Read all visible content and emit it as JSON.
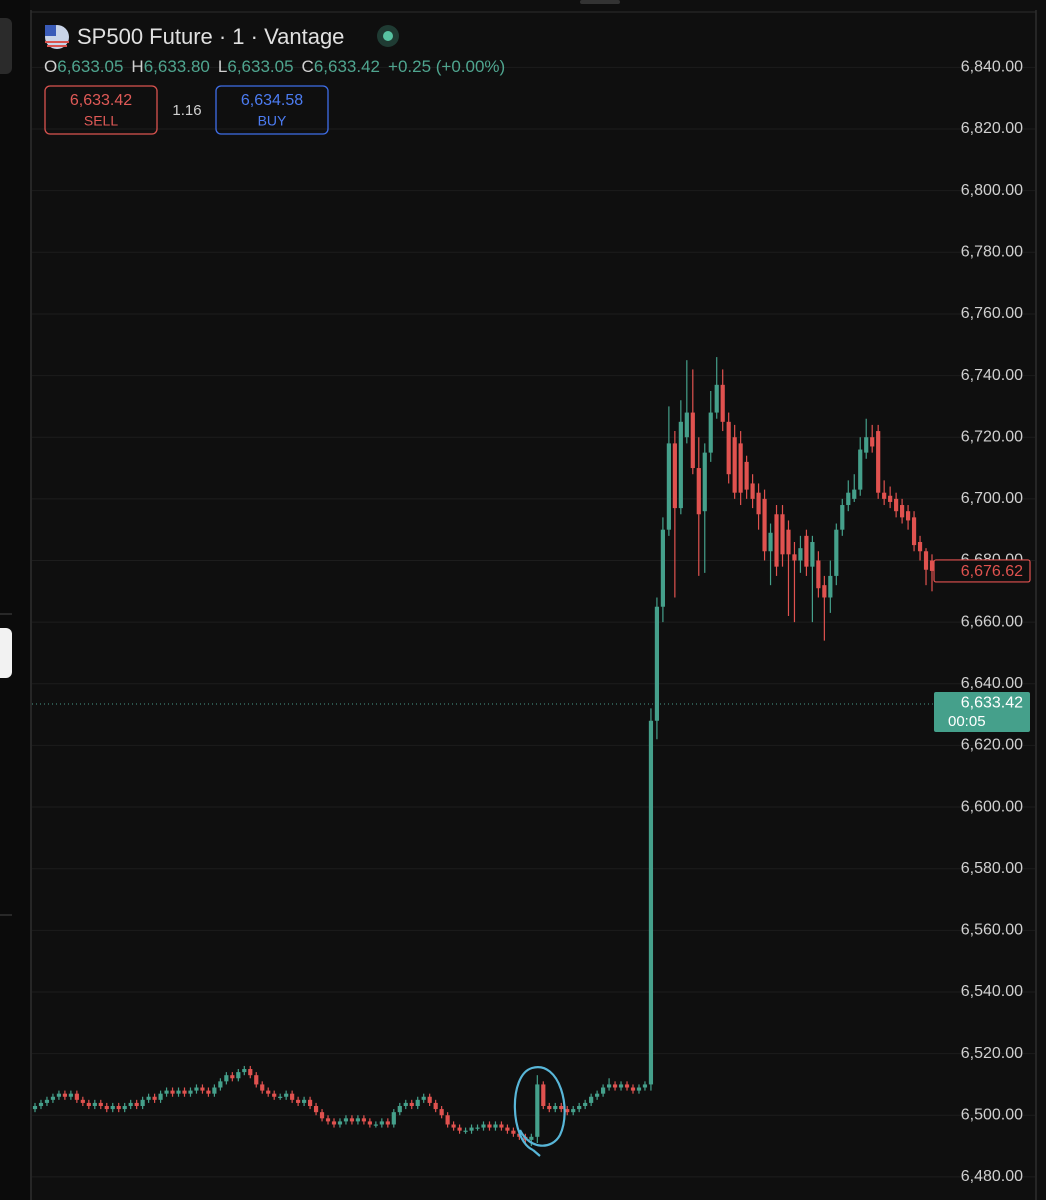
{
  "header": {
    "title": "SP500 Future · 1 · Vantage",
    "ohlc": [
      {
        "key": "O",
        "value": "6,633.05"
      },
      {
        "key": "H",
        "value": "6,633.80"
      },
      {
        "key": "L",
        "value": "6,633.05"
      },
      {
        "key": "C",
        "value": "6,633.42"
      }
    ],
    "change": "+0.25 (+0.00%)",
    "sell": {
      "price": "6,633.42",
      "label": "SELL"
    },
    "spread": "1.16",
    "buy": {
      "price": "6,634.58",
      "label": "BUY"
    }
  },
  "chart_data": {
    "type": "candlestick",
    "up_color": "#45a08b",
    "down_color": "#e0524f",
    "grid": true,
    "ylim": [
      6472.5,
      6857
    ],
    "yticks": [
      {
        "value": 6480,
        "label": "6,480.00"
      },
      {
        "value": 6500,
        "label": "6,500.00"
      },
      {
        "value": 6520,
        "label": "6,520.00"
      },
      {
        "value": 6540,
        "label": "6,540.00"
      },
      {
        "value": 6560,
        "label": "6,560.00"
      },
      {
        "value": 6580,
        "label": "6,580.00"
      },
      {
        "value": 6600,
        "label": "6,600.00"
      },
      {
        "value": 6620,
        "label": "6,620.00"
      },
      {
        "value": 6640,
        "label": "6,640.00"
      },
      {
        "value": 6660,
        "label": "6,660.00"
      },
      {
        "value": 6680,
        "label": "6,680.00"
      },
      {
        "value": 6700,
        "label": "6,700.00"
      },
      {
        "value": 6720,
        "label": "6,720.00"
      },
      {
        "value": 6740,
        "label": "6,740.00"
      },
      {
        "value": 6760,
        "label": "6,760.00"
      },
      {
        "value": 6780,
        "label": "6,780.00"
      },
      {
        "value": 6800,
        "label": "6,800.00"
      },
      {
        "value": 6820,
        "label": "6,820.00"
      },
      {
        "value": 6840,
        "label": "6,840.00"
      }
    ],
    "open": [
      6502,
      6503,
      6504,
      6505,
      6506,
      6507,
      6506,
      6507,
      6505,
      6504,
      6503,
      6504,
      6503,
      6502,
      6503,
      6502,
      6503,
      6504,
      6503,
      6505,
      6506,
      6505,
      6507,
      6508,
      6507,
      6508,
      6507,
      6508,
      6509,
      6508,
      6507,
      6509,
      6511,
      6513,
      6512,
      6514,
      6515,
      6513,
      6510,
      6508,
      6507,
      6506,
      6506,
      6507,
      6505,
      6504,
      6505,
      6503,
      6501,
      6499,
      6498,
      6497,
      6498,
      6499,
      6498,
      6499,
      6498,
      6497,
      6497,
      6498,
      6497,
      6501,
      6503,
      6504,
      6503,
      6505,
      6506,
      6504,
      6502,
      6500,
      6497,
      6496,
      6495,
      6495,
      6496,
      6496,
      6497,
      6496,
      6497,
      6496,
      6495,
      6494,
      6493,
      6492,
      6493,
      6510,
      6503,
      6502,
      6503,
      6502,
      6501,
      6502,
      6503,
      6504,
      6506,
      6507,
      6509,
      6510,
      6509,
      6510,
      6509,
      6508,
      6509,
      6510,
      6628,
      6665,
      6690,
      6718,
      6697,
      6720,
      6728,
      6710,
      6696,
      6715,
      6728,
      6737,
      6725,
      6720,
      6718,
      6712,
      6705,
      6702,
      6700,
      6683,
      6695,
      6695,
      6690,
      6682,
      6680,
      6688,
      6678,
      6680,
      6672,
      6668,
      6675,
      6690,
      6698,
      6700,
      6703,
      6715,
      6720,
      6722,
      6702,
      6701,
      6700,
      6698,
      6696,
      6694,
      6686,
      6683,
      6680
    ],
    "high": [
      6504,
      6505,
      6506,
      6507,
      6508,
      6508,
      6508,
      6508,
      6506,
      6505,
      6505,
      6505,
      6504,
      6504,
      6504,
      6504,
      6505,
      6505,
      6506,
      6507,
      6507,
      6508,
      6509,
      6509,
      6509,
      6509,
      6509,
      6510,
      6510,
      6509,
      6510,
      6512,
      6514,
      6514,
      6515,
      6516,
      6516,
      6514,
      6511,
      6509,
      6508,
      6507,
      6508,
      6508,
      6506,
      6506,
      6506,
      6504,
      6502,
      6500,
      6499,
      6499,
      6500,
      6500,
      6500,
      6500,
      6499,
      6498,
      6499,
      6499,
      6502,
      6504,
      6505,
      6505,
      6506,
      6507,
      6507,
      6505,
      6503,
      6501,
      6498,
      6497,
      6496,
      6497,
      6497,
      6498,
      6498,
      6498,
      6498,
      6497,
      6496,
      6495,
      6494,
      6494,
      6513,
      6511,
      6504,
      6504,
      6504,
      6503,
      6503,
      6504,
      6505,
      6507,
      6508,
      6510,
      6512,
      6511,
      6511,
      6511,
      6510,
      6510,
      6511,
      6632,
      6668,
      6694,
      6730,
      6722,
      6732,
      6745,
      6742,
      6720,
      6718,
      6735,
      6746,
      6742,
      6728,
      6724,
      6722,
      6714,
      6708,
      6705,
      6703,
      6692,
      6698,
      6698,
      6693,
      6686,
      6688,
      6690,
      6688,
      6683,
      6675,
      6680,
      6692,
      6700,
      6706,
      6708,
      6720,
      6726,
      6724,
      6724,
      6706,
      6704,
      6702,
      6700,
      6698,
      6696,
      6688,
      6684,
      6682
    ],
    "low": [
      6501,
      6502,
      6503,
      6504,
      6505,
      6505,
      6505,
      6504,
      6503,
      6502,
      6502,
      6502,
      6501,
      6501,
      6501,
      6501,
      6502,
      6502,
      6502,
      6504,
      6504,
      6504,
      6506,
      6506,
      6506,
      6506,
      6506,
      6507,
      6507,
      6506,
      6506,
      6508,
      6510,
      6511,
      6511,
      6513,
      6512,
      6509,
      6507,
      6506,
      6505,
      6505,
      6505,
      6504,
      6503,
      6503,
      6502,
      6500,
      6498,
      6497,
      6496,
      6496,
      6497,
      6497,
      6497,
      6497,
      6496,
      6496,
      6496,
      6496,
      6496,
      6500,
      6502,
      6502,
      6502,
      6504,
      6503,
      6501,
      6499,
      6496,
      6495,
      6494,
      6494,
      6494,
      6495,
      6495,
      6495,
      6495,
      6495,
      6494,
      6493,
      6492,
      6491,
      6490,
      6491,
      6502,
      6501,
      6501,
      6501,
      6500,
      6500,
      6501,
      6502,
      6503,
      6505,
      6506,
      6508,
      6508,
      6508,
      6508,
      6507,
      6507,
      6508,
      6508,
      6622,
      6660,
      6688,
      6668,
      6695,
      6718,
      6708,
      6675,
      6676,
      6712,
      6726,
      6722,
      6705,
      6700,
      6698,
      6700,
      6697,
      6690,
      6680,
      6672,
      6675,
      6678,
      6662,
      6660,
      6676,
      6675,
      6660,
      6668,
      6654,
      6663,
      6672,
      6688,
      6696,
      6699,
      6701,
      6713,
      6715,
      6700,
      6698,
      6697,
      6694,
      6692,
      6690,
      6683,
      6680,
      6672,
      6670
    ],
    "close": [
      6503,
      6504,
      6505,
      6506,
      6507,
      6506,
      6507,
      6505,
      6504,
      6503,
      6504,
      6503,
      6502,
      6503,
      6502,
      6503,
      6504,
      6503,
      6505,
      6506,
      6505,
      6507,
      6508,
      6507,
      6508,
      6507,
      6508,
      6509,
      6508,
      6507,
      6509,
      6511,
      6513,
      6512,
      6514,
      6515,
      6513,
      6510,
      6508,
      6507,
      6506,
      6506,
      6507,
      6505,
      6504,
      6505,
      6503,
      6501,
      6499,
      6498,
      6497,
      6498,
      6499,
      6498,
      6499,
      6498,
      6497,
      6497,
      6498,
      6497,
      6501,
      6503,
      6504,
      6503,
      6505,
      6506,
      6504,
      6502,
      6500,
      6497,
      6496,
      6495,
      6495,
      6496,
      6496,
      6497,
      6496,
      6497,
      6496,
      6495,
      6494,
      6493,
      6492,
      6493,
      6510,
      6503,
      6502,
      6503,
      6502,
      6501,
      6502,
      6503,
      6504,
      6506,
      6507,
      6509,
      6510,
      6509,
      6510,
      6509,
      6508,
      6509,
      6510,
      6628,
      6665,
      6690,
      6718,
      6697,
      6725,
      6728,
      6710,
      6695,
      6715,
      6728,
      6737,
      6725,
      6708,
      6702,
      6702,
      6703,
      6700,
      6695,
      6683,
      6689,
      6678,
      6682,
      6682,
      6680,
      6684,
      6678,
      6686,
      6671,
      6668,
      6675,
      6690,
      6698,
      6702,
      6703,
      6716,
      6720,
      6717,
      6702,
      6700,
      6699,
      6696,
      6694,
      6693,
      6685,
      6683,
      6677,
      6676.62
    ],
    "last_price": {
      "value": 6676.62,
      "label": "6,676.62"
    },
    "current_price": {
      "value": 6633.42,
      "label": "6,633.42",
      "countdown": "00:05"
    }
  }
}
